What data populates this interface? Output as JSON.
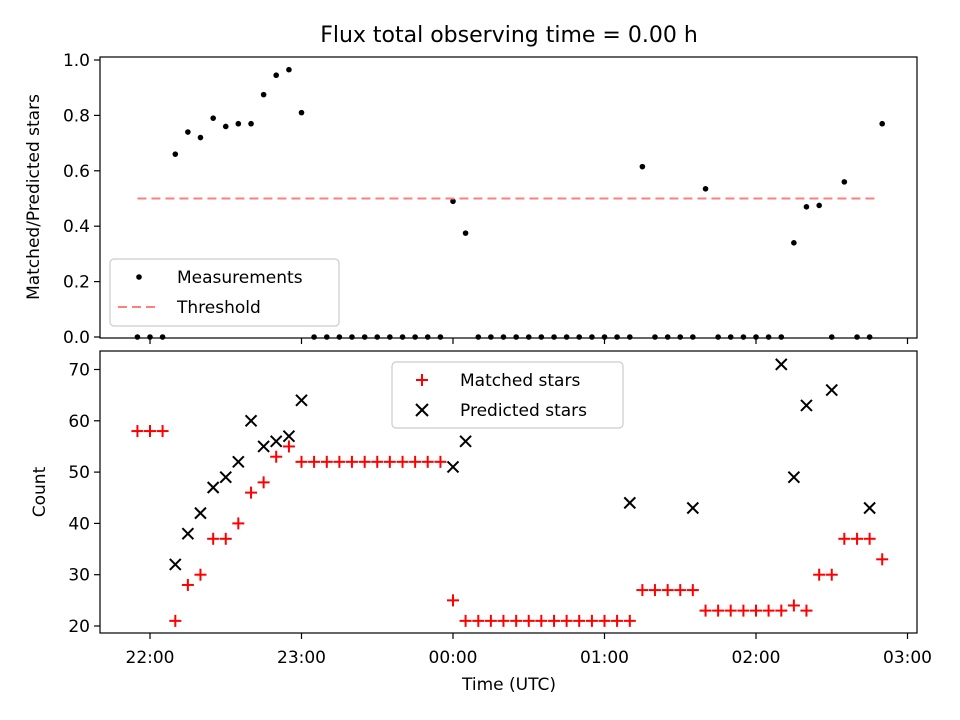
{
  "chart_data": [
    {
      "type": "scatter",
      "title": "Flux total observing time = 0.00 h",
      "ylabel": "Matched/Predicted stars",
      "xlabel": "",
      "ylim": [
        0,
        1.0
      ],
      "x_unit": "hours since 22:00 UTC",
      "yticks": [
        "0.0",
        "0.2",
        "0.4",
        "0.6",
        "0.8",
        "1.0"
      ],
      "legend_position": "lower-left",
      "legend": [
        "Measurements",
        "Threshold"
      ],
      "threshold": 0.5,
      "threshold_range": [
        -0.083,
        4.8
      ],
      "series": [
        {
          "name": "Measurements",
          "x": [
            -0.083,
            0.0,
            0.083,
            0.167,
            0.25,
            0.333,
            0.417,
            0.5,
            0.583,
            0.667,
            0.75,
            0.833,
            0.917,
            1.0,
            1.083,
            1.167,
            1.25,
            1.333,
            1.417,
            1.5,
            1.583,
            1.667,
            1.75,
            1.833,
            1.917,
            2.0,
            2.083,
            2.167,
            2.25,
            2.333,
            2.417,
            2.5,
            2.583,
            2.667,
            2.75,
            2.833,
            2.917,
            3.0,
            3.083,
            3.167,
            3.25,
            3.333,
            3.417,
            3.5,
            3.583,
            3.667,
            3.75,
            3.833,
            3.917,
            4.0,
            4.083,
            4.167,
            4.25,
            4.333,
            4.417,
            4.5,
            4.583,
            4.667,
            4.75,
            4.833
          ],
          "y": [
            0,
            0,
            0,
            0.66,
            0.74,
            0.72,
            0.79,
            0.76,
            0.77,
            0.77,
            0.875,
            0.945,
            0.965,
            0.81,
            0,
            0,
            0,
            0,
            0,
            0,
            0,
            0,
            0,
            0,
            0,
            0.49,
            0.375,
            0,
            0,
            0,
            0,
            0,
            0,
            0,
            0,
            0,
            0,
            0,
            0,
            0,
            0.615,
            0,
            0,
            0,
            0,
            0.535,
            0,
            0,
            0,
            0,
            0,
            0,
            0.34,
            0.47,
            0.475,
            0,
            0.56,
            0,
            0,
            0.77
          ]
        }
      ]
    },
    {
      "type": "scatter",
      "title": "",
      "xlabel": "Time (UTC)",
      "ylabel": "Count",
      "ylim": [
        19,
        74
      ],
      "yticks": [
        "20",
        "30",
        "40",
        "50",
        "60",
        "70"
      ],
      "xticks": [
        "22:00",
        "23:00",
        "00:00",
        "01:00",
        "02:00",
        "03:00"
      ],
      "legend_position": "upper-center",
      "legend": [
        "Matched stars",
        "Predicted stars"
      ],
      "series": [
        {
          "name": "Matched stars",
          "x": [
            -0.083,
            0.0,
            0.083,
            0.167,
            0.25,
            0.333,
            0.417,
            0.5,
            0.583,
            0.667,
            0.75,
            0.833,
            0.917,
            1.0,
            1.083,
            1.167,
            1.25,
            1.333,
            1.417,
            1.5,
            1.583,
            1.667,
            1.75,
            1.833,
            1.917,
            2.0,
            2.083,
            2.167,
            2.25,
            2.333,
            2.417,
            2.5,
            2.583,
            2.667,
            2.75,
            2.833,
            2.917,
            3.0,
            3.083,
            3.167,
            3.25,
            3.333,
            3.417,
            3.5,
            3.583,
            3.667,
            3.75,
            3.833,
            3.917,
            4.0,
            4.083,
            4.167,
            4.25,
            4.333,
            4.417,
            4.5,
            4.583,
            4.667,
            4.75,
            4.833
          ],
          "y": [
            58,
            58,
            58,
            21,
            28,
            30,
            37,
            37,
            40,
            46,
            48,
            53,
            55,
            52,
            52,
            52,
            52,
            52,
            52,
            52,
            52,
            52,
            52,
            52,
            52,
            25,
            21,
            21,
            21,
            21,
            21,
            21,
            21,
            21,
            21,
            21,
            21,
            21,
            21,
            21,
            27,
            27,
            27,
            27,
            27,
            23,
            23,
            23,
            23,
            23,
            23,
            23,
            24,
            23,
            30,
            30,
            37,
            37,
            37,
            33
          ]
        },
        {
          "name": "Predicted stars",
          "x": [
            0.167,
            0.25,
            0.333,
            0.417,
            0.5,
            0.583,
            0.667,
            0.75,
            0.833,
            0.917,
            1.0,
            2.0,
            2.083,
            3.167,
            3.583,
            4.167,
            4.25,
            4.333,
            4.5,
            4.75
          ],
          "y": [
            32,
            38,
            42,
            47,
            49,
            52,
            60,
            55,
            56,
            57,
            64,
            51,
            56,
            44,
            43,
            71,
            49,
            63,
            66,
            43
          ]
        }
      ]
    }
  ]
}
